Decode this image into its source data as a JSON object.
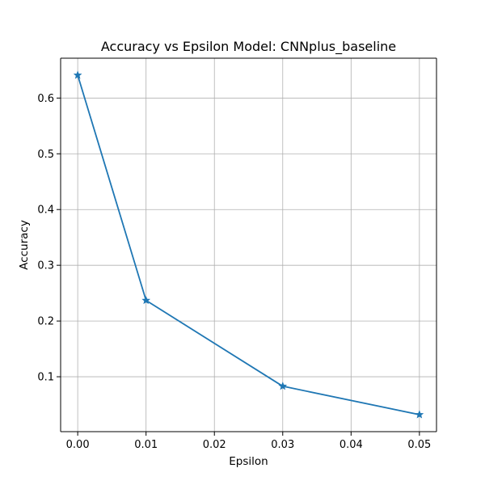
{
  "chart_data": {
    "type": "line",
    "title": "Accuracy vs Epsilon Model: CNNplus_baseline",
    "xlabel": "Epsilon",
    "ylabel": "Accuracy",
    "x": [
      0.0,
      0.01,
      0.03,
      0.05
    ],
    "series": [
      {
        "values": [
          0.641,
          0.237,
          0.083,
          0.032
        ]
      }
    ],
    "x_ticks": [
      "0.00",
      "0.01",
      "0.02",
      "0.03",
      "0.04",
      "0.05"
    ],
    "y_ticks": [
      "0.1",
      "0.2",
      "0.3",
      "0.4",
      "0.5",
      "0.6"
    ],
    "xlim": [
      -0.0025,
      0.0525
    ],
    "ylim": [
      0.0015,
      0.6715
    ],
    "grid": true,
    "marker": "star",
    "line_color": "#1f77b4"
  }
}
